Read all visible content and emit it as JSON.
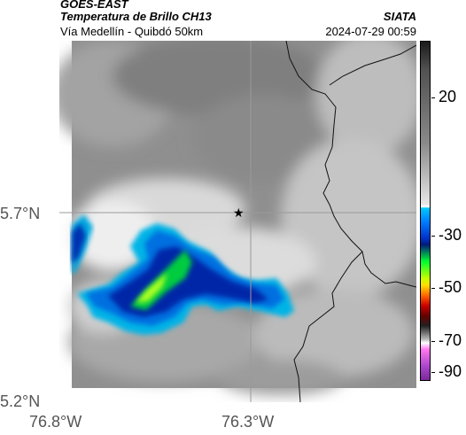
{
  "header": {
    "satellite": "GOES-EAST",
    "product": "Temperatura de Brillo CH13",
    "organization": "SIATA",
    "region": "Vía Medellín - Quibdó 50km",
    "datetime": "2024-07-29 00:59"
  },
  "map": {
    "lat_labels": [
      "5.7°N",
      "5.2°N"
    ],
    "lon_labels": [
      "76.8°W",
      "76.3°W"
    ],
    "marker_icon": "star-icon"
  },
  "colorbar": {
    "labels": [
      "20",
      "-30",
      "-50",
      "-70",
      "-90"
    ],
    "colors": {
      "cold_core": "#00ff30",
      "deep": "#001a7a",
      "edge": "#00c8ff"
    }
  }
}
